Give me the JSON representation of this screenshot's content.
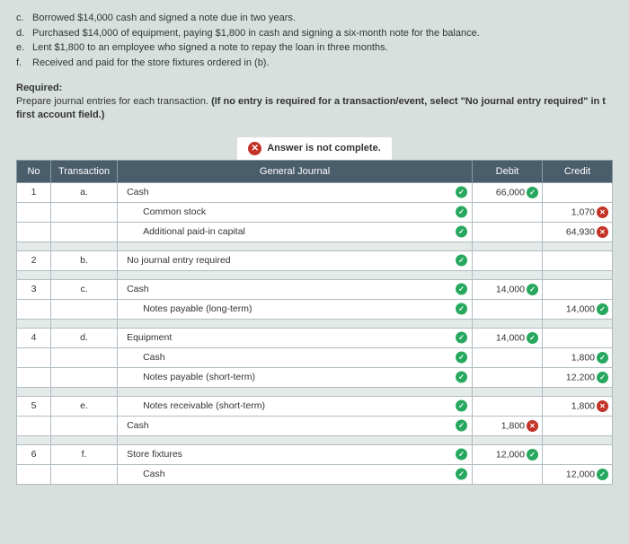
{
  "question": {
    "items": [
      {
        "letter": "c.",
        "text": "Borrowed $14,000 cash and signed a note due in two years."
      },
      {
        "letter": "d.",
        "text": "Purchased $14,000 of equipment, paying $1,800 in cash and signing a six-month note for the balance."
      },
      {
        "letter": "e.",
        "text": "Lent $1,800 to an employee who signed a note to repay the loan in three months."
      },
      {
        "letter": "f.",
        "text": "Received and paid for the store fixtures ordered in (b)."
      }
    ]
  },
  "required": {
    "label": "Required:",
    "text_before": "Prepare journal entries for each transaction. ",
    "text_bold": "(If no entry is required for a transaction/event, select \"No journal entry required\" in t",
    "text_bold2": "first account field.)"
  },
  "banner": {
    "icon": "x",
    "text": "Answer is not complete."
  },
  "headers": {
    "no": "No",
    "transaction": "Transaction",
    "general_journal": "General Journal",
    "debit": "Debit",
    "credit": "Credit"
  },
  "entries": [
    {
      "no": "1",
      "trans": "a.",
      "lines": [
        {
          "account": "Cash",
          "indent": false,
          "mark": "ok",
          "debit": "66,000",
          "debit_mark": "ok",
          "credit": "",
          "credit_mark": ""
        },
        {
          "account": "Common stock",
          "indent": true,
          "mark": "ok",
          "debit": "",
          "debit_mark": "",
          "credit": "1,070",
          "credit_mark": "bad"
        },
        {
          "account": "Additional paid-in capital",
          "indent": true,
          "mark": "ok",
          "debit": "",
          "debit_mark": "",
          "credit": "64,930",
          "credit_mark": "bad"
        }
      ]
    },
    {
      "no": "2",
      "trans": "b.",
      "lines": [
        {
          "account": "No journal entry required",
          "indent": false,
          "mark": "ok",
          "debit": "",
          "debit_mark": "",
          "credit": "",
          "credit_mark": ""
        }
      ]
    },
    {
      "no": "3",
      "trans": "c.",
      "lines": [
        {
          "account": "Cash",
          "indent": false,
          "mark": "ok",
          "debit": "14,000",
          "debit_mark": "ok",
          "credit": "",
          "credit_mark": ""
        },
        {
          "account": "Notes payable (long-term)",
          "indent": true,
          "mark": "ok",
          "debit": "",
          "debit_mark": "",
          "credit": "14,000",
          "credit_mark": "ok"
        }
      ]
    },
    {
      "no": "4",
      "trans": "d.",
      "lines": [
        {
          "account": "Equipment",
          "indent": false,
          "mark": "ok",
          "debit": "14,000",
          "debit_mark": "ok",
          "credit": "",
          "credit_mark": ""
        },
        {
          "account": "Cash",
          "indent": true,
          "mark": "ok",
          "debit": "",
          "debit_mark": "",
          "credit": "1,800",
          "credit_mark": "ok"
        },
        {
          "account": "Notes payable (short-term)",
          "indent": true,
          "mark": "ok",
          "debit": "",
          "debit_mark": "",
          "credit": "12,200",
          "credit_mark": "ok"
        }
      ]
    },
    {
      "no": "5",
      "trans": "e.",
      "lines": [
        {
          "account": "Notes receivable (short-term)",
          "indent": true,
          "mark": "ok",
          "debit": "",
          "debit_mark": "",
          "credit": "1,800",
          "credit_mark": "bad"
        },
        {
          "account": "Cash",
          "indent": false,
          "mark": "ok",
          "debit": "1,800",
          "debit_mark": "bad",
          "credit": "",
          "credit_mark": ""
        }
      ]
    },
    {
      "no": "6",
      "trans": "f.",
      "lines": [
        {
          "account": "Store fixtures",
          "indent": false,
          "mark": "ok",
          "debit": "12,000",
          "debit_mark": "ok",
          "credit": "",
          "credit_mark": ""
        },
        {
          "account": "Cash",
          "indent": true,
          "mark": "ok",
          "debit": "",
          "debit_mark": "",
          "credit": "12,000",
          "credit_mark": "ok"
        }
      ]
    }
  ]
}
